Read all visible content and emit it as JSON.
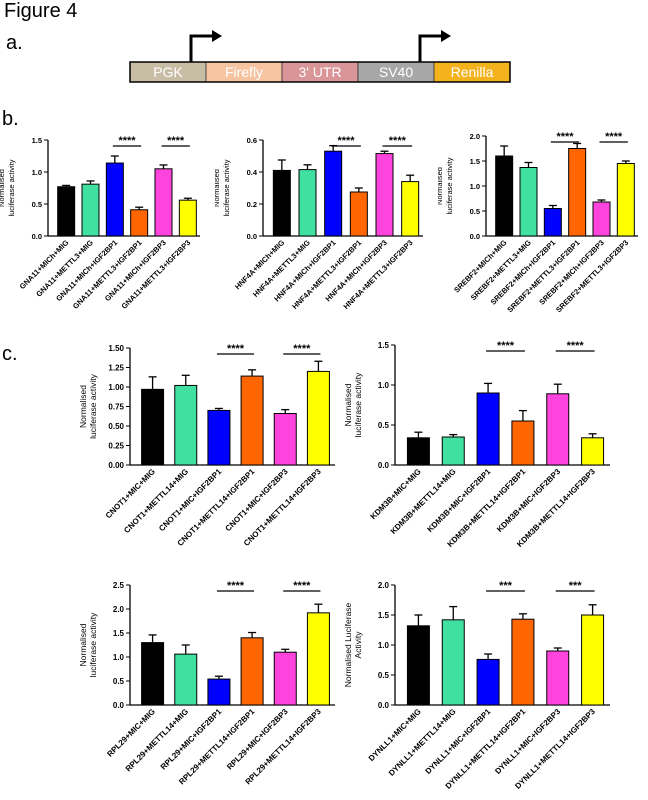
{
  "figure_title": "Figure 4",
  "panel_labels": {
    "a": "a.",
    "b": "b.",
    "c": "c."
  },
  "construct": {
    "segments": [
      {
        "label": "PGK",
        "color": "#c8bea5"
      },
      {
        "label": "Firefly",
        "color": "#f7c4a2"
      },
      {
        "label": "3' UTR",
        "color": "#d99597"
      },
      {
        "label": "SV40",
        "color": "#a7a7a7"
      },
      {
        "label": "Renilla",
        "color": "#f4b21c"
      }
    ]
  },
  "colors": [
    "#000000",
    "#40e0a0",
    "#0000ff",
    "#ff6600",
    "#ff44dd",
    "#ffff00"
  ],
  "chart_data": [
    {
      "id": "b1",
      "type": "bar",
      "ylabel": "Normalised\nluciferase activity",
      "ylim": [
        0,
        1.5
      ],
      "yticks": [
        "0.0",
        "0.5",
        "1.0",
        "1.5"
      ],
      "categories": [
        "GNA11+MICh+MIG",
        "GNA11+METTL3+MIG",
        "GNA11+MICh+IGF2BP1",
        "GNA11+METTL3+IGF2BP1",
        "GNA11+MICh+IGF2BP3",
        "GNA11+METTL3+IGF2BP3"
      ],
      "values": [
        0.77,
        0.81,
        1.14,
        0.41,
        1.05,
        0.56
      ],
      "errors": [
        0.02,
        0.05,
        0.11,
        0.04,
        0.06,
        0.03
      ],
      "significance": [
        {
          "label": "****"
        },
        {
          "label": "****"
        }
      ]
    },
    {
      "id": "b2",
      "type": "bar",
      "ylabel": "Normalised\nluciferase activity",
      "ylim": [
        0,
        0.6
      ],
      "yticks": [
        "0.0",
        "0.2",
        "0.4",
        "0.6"
      ],
      "categories": [
        "HNF4A+MICh+MIG",
        "HNF4A+METTL3+MIG",
        "HNF4A+MICh+IGF2BP1",
        "HNF4A+METTL3+IGF2BP1",
        "HNF4A+MICh+IGF2BP3",
        "HNF4A+METTL3+IGF2BP3"
      ],
      "values": [
        0.41,
        0.415,
        0.53,
        0.275,
        0.515,
        0.34
      ],
      "errors": [
        0.065,
        0.03,
        0.035,
        0.025,
        0.015,
        0.04
      ],
      "significance": [
        {
          "label": "****"
        },
        {
          "label": "****"
        }
      ]
    },
    {
      "id": "b3",
      "type": "bar",
      "ylabel": "Normalised\nluciferase activity",
      "ylim": [
        0,
        2.0
      ],
      "yticks": [
        "0.0",
        "0.5",
        "1.0",
        "1.5",
        "2.0"
      ],
      "categories": [
        "SREBF2+MICh+MIG",
        "SREBF2+METTL3+MIG",
        "SREBF2+MICh+IGF2BP1",
        "SREBF2+METTL3+IGF2BP1",
        "SREBF2+MICh+IGF2BP3",
        "SREBF2+METTL3+IGF2BP3"
      ],
      "values": [
        1.6,
        1.37,
        0.55,
        1.75,
        0.68,
        1.45
      ],
      "errors": [
        0.2,
        0.1,
        0.06,
        0.1,
        0.04,
        0.05
      ],
      "significance": [
        {
          "label": "****"
        },
        {
          "label": "****"
        }
      ]
    },
    {
      "id": "c1",
      "type": "bar",
      "ylabel": "Normalised\nluciferase activity",
      "ylim": [
        0,
        1.5
      ],
      "yticks": [
        "0.00",
        "0.25",
        "0.50",
        "0.75",
        "1.00",
        "1.25",
        "1.50"
      ],
      "categories": [
        "CNOT1+MIC+MIG",
        "CNOT1+METTL14+MIG",
        "CNOT1+MIC+IGF2BP1",
        "CNOT1+METTL14+IGF2BP1",
        "CNOT1+MIC+IGF2BP3",
        "CNOT1+METTL14+IGF2BP3"
      ],
      "values": [
        0.97,
        1.02,
        0.7,
        1.14,
        0.66,
        1.2
      ],
      "errors": [
        0.16,
        0.13,
        0.025,
        0.08,
        0.05,
        0.13
      ],
      "significance": [
        {
          "label": "****"
        },
        {
          "label": "****"
        }
      ]
    },
    {
      "id": "c2",
      "type": "bar",
      "ylabel": "Normalised\nluciferase activity",
      "ylim": [
        0,
        1.5
      ],
      "yticks": [
        "0.0",
        "0.5",
        "1.0",
        "1.5"
      ],
      "categories": [
        "KDM3B+MIC+MIG",
        "KDM3B+METTL14+MIG",
        "KDM3B+MIC+IGF2BP1",
        "KDM3B+METTL14+IGF2BP1",
        "KDM3B+MIC+IGF2BP3",
        "KDM3B+METTL14+IGF2BP3"
      ],
      "values": [
        0.34,
        0.35,
        0.9,
        0.55,
        0.89,
        0.34
      ],
      "errors": [
        0.07,
        0.03,
        0.12,
        0.13,
        0.12,
        0.05
      ],
      "significance": [
        {
          "label": "****"
        },
        {
          "label": "****"
        }
      ]
    },
    {
      "id": "c3",
      "type": "bar",
      "ylabel": "Normalised\nluciferase activity",
      "ylim": [
        0,
        2.5
      ],
      "yticks": [
        "0.0",
        "0.5",
        "1.0",
        "1.5",
        "2.0",
        "2.5"
      ],
      "categories": [
        "RPL29+MIC+MIG",
        "RPL29+METTL14+MIG",
        "RPL29+MIC+IGF2BP1",
        "RPL29+METTL14+IGF2BP1",
        "RPL29+MIC+IGF2BP3",
        "RPL29+METTL14+IGF2BP3"
      ],
      "values": [
        1.3,
        1.06,
        0.54,
        1.4,
        1.1,
        1.92
      ],
      "errors": [
        0.16,
        0.19,
        0.06,
        0.11,
        0.06,
        0.18
      ],
      "significance": [
        {
          "label": "****"
        },
        {
          "label": "****"
        }
      ]
    },
    {
      "id": "c4",
      "type": "bar",
      "ylabel": "Normalised Luciferase\nActivity",
      "ylim": [
        0,
        2.0
      ],
      "yticks": [
        "0.0",
        "0.5",
        "1.0",
        "1.5",
        "2.0"
      ],
      "categories": [
        "DYNLL1+MIC+MIG",
        "DYNLL1+METTL14+MIG",
        "DYNLL1+MIC+IGF2BP1",
        "DYNLL1+METTL14+IGF2BP1",
        "DYNLL1+MIC+IGF2BP3",
        "DYNLL1+METTL14+IGF2BP3"
      ],
      "values": [
        1.32,
        1.42,
        0.76,
        1.43,
        0.9,
        1.5
      ],
      "errors": [
        0.18,
        0.22,
        0.09,
        0.09,
        0.05,
        0.17
      ],
      "significance": [
        {
          "label": "***"
        },
        {
          "label": "***"
        }
      ]
    }
  ]
}
